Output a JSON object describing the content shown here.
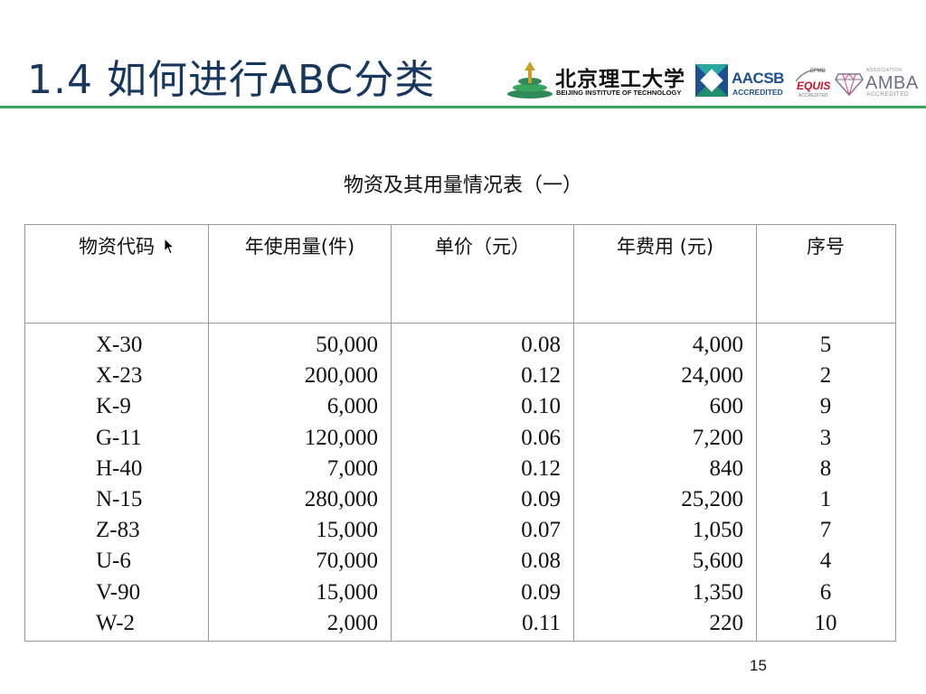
{
  "slide": {
    "title": "1.4 如何进行ABC分类",
    "page_number": "15",
    "accent_color": "#3aa35f",
    "title_color": "#17375e"
  },
  "logos": {
    "bit_name_cn": "北京理工大学",
    "bit_name_en": "BEIJING INSTITUTE OF TECHNOLOGY",
    "aacsb_name": "AACSB",
    "aacsb_status": "ACCREDITED",
    "efmd_label": "EFMD",
    "equis_name": "EQUIS",
    "equis_status": "ACCREDITED",
    "amba_assoc": "ASSOCIATION",
    "amba_name": "AMBA",
    "amba_status": "ACCREDITED"
  },
  "table": {
    "caption": "物资及其用量情况表（一）",
    "headers": {
      "code": "物资代码",
      "annual_usage": "年使用量(件)",
      "unit_price": "单价（元）",
      "annual_cost": "年费用 (元)",
      "rank": "序号"
    },
    "codes": [
      "X-30",
      "X-23",
      "K-9",
      "G-11",
      "H-40",
      "N-15",
      "Z-83",
      "U-6",
      "V-90",
      "W-2"
    ],
    "annual_usage": [
      "50,000",
      "200,000",
      "6,000",
      "120,000",
      "7,000",
      "280,000",
      "15,000",
      "70,000",
      "15,000",
      "2,000"
    ],
    "unit_price": [
      "0.08",
      "0.12",
      "0.10",
      "0.06",
      "0.12",
      "0.09",
      "0.07",
      "0.08",
      "0.09",
      "0.11"
    ],
    "annual_cost": [
      "4,000",
      "24,000",
      "600",
      "7,200",
      "840",
      "25,200",
      "1,050",
      "5,600",
      "1,350",
      "220"
    ],
    "rank": [
      "5",
      "2",
      "9",
      "3",
      "8",
      "1",
      "7",
      "4",
      "6",
      "10"
    ]
  }
}
